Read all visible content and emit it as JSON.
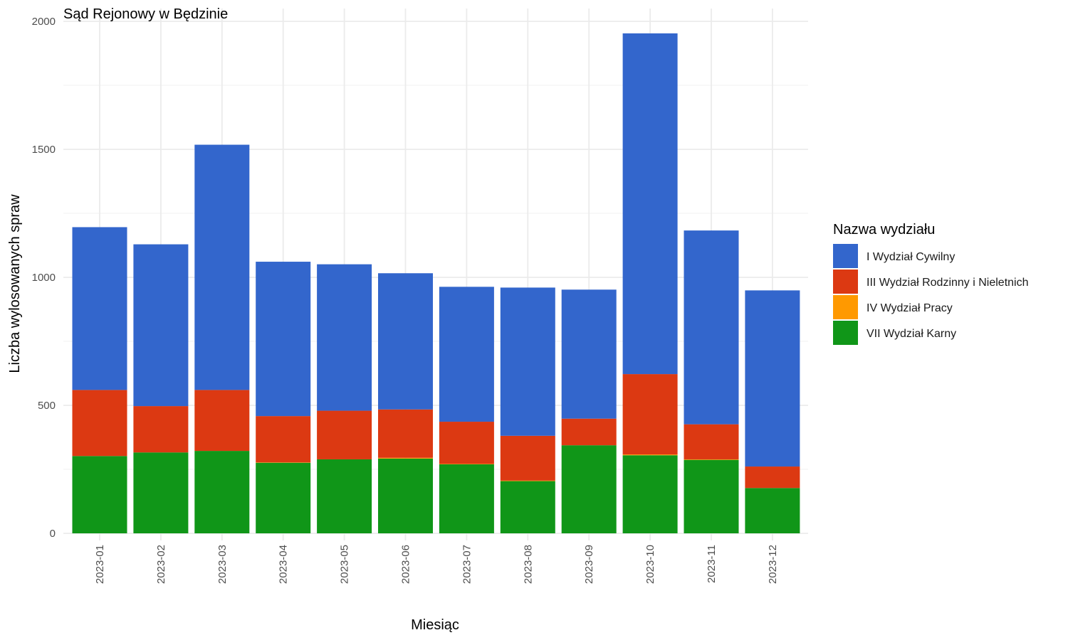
{
  "chart_data": {
    "type": "bar",
    "stacked": true,
    "title": "Sąd Rejonowy w Będzinie",
    "xlabel": "Miesiąc",
    "ylabel": "Liczba wylosowanych spraw",
    "ylim": [
      0,
      2050
    ],
    "yticks": [
      0,
      500,
      1000,
      1500,
      2000
    ],
    "grid": true,
    "legend_position": "right",
    "legend_title": "Nazwa wydziału",
    "categories": [
      "2023-01",
      "2023-02",
      "2023-03",
      "2023-04",
      "2023-05",
      "2023-06",
      "2023-07",
      "2023-08",
      "2023-09",
      "2023-10",
      "2023-11",
      "2023-12"
    ],
    "series": [
      {
        "name": "VII Wydział Karny",
        "color": "#109618",
        "values": [
          302,
          316,
          322,
          276,
          289,
          292,
          270,
          204,
          344,
          305,
          287,
          177
        ]
      },
      {
        "name": "IV Wydział Pracy",
        "color": "#FF9900",
        "values": [
          0,
          0,
          0,
          1,
          0,
          3,
          1,
          2,
          0,
          3,
          2,
          0
        ]
      },
      {
        "name": "III Wydział Rodzinny i Nieletnich",
        "color": "#DC3912",
        "values": [
          258,
          181,
          238,
          181,
          190,
          189,
          165,
          175,
          104,
          314,
          137,
          84
        ]
      },
      {
        "name": "I Wydział Cywilny",
        "color": "#3366CC",
        "values": [
          636,
          632,
          958,
          603,
          572,
          532,
          527,
          579,
          504,
          1331,
          757,
          688
        ]
      }
    ],
    "legend_order": [
      "I Wydział Cywilny",
      "III Wydział Rodzinny i Nieletnich",
      "IV Wydział Pracy",
      "VII Wydział Karny"
    ]
  }
}
